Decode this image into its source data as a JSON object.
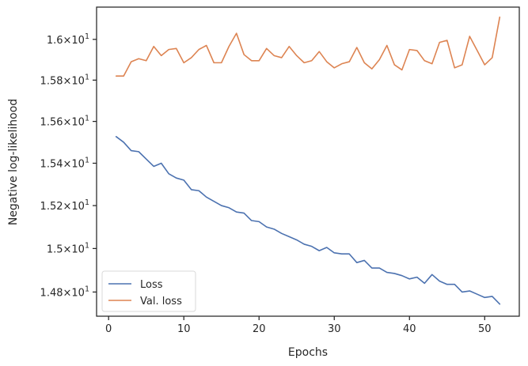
{
  "chart_data": {
    "type": "line",
    "xlabel": "Epochs",
    "ylabel": "Negative log-likelihood",
    "yscale": "log",
    "xlim": [
      -1.6,
      54.6
    ],
    "ylim": [
      14.69,
      16.16
    ],
    "grid": false,
    "legend_position": "lower-left",
    "x_ticks": [
      0,
      10,
      20,
      30,
      40,
      50
    ],
    "x_tick_labels": [
      "0",
      "10",
      "20",
      "30",
      "40",
      "50"
    ],
    "y_ticks": [
      {
        "value": 14.8,
        "mantissa": "1.48",
        "base": "10",
        "exp": "1"
      },
      {
        "value": 15.0,
        "mantissa": "1.5",
        "base": "10",
        "exp": "1"
      },
      {
        "value": 15.2,
        "mantissa": "1.52",
        "base": "10",
        "exp": "1"
      },
      {
        "value": 15.4,
        "mantissa": "1.54",
        "base": "10",
        "exp": "1"
      },
      {
        "value": 15.6,
        "mantissa": "1.56",
        "base": "10",
        "exp": "1"
      },
      {
        "value": 15.8,
        "mantissa": "1.58",
        "base": "10",
        "exp": "1"
      },
      {
        "value": 16.0,
        "mantissa": "1.6",
        "base": "10",
        "exp": "1"
      }
    ],
    "x": [
      1,
      2,
      3,
      4,
      5,
      6,
      7,
      8,
      9,
      10,
      11,
      12,
      13,
      14,
      15,
      16,
      17,
      18,
      19,
      20,
      21,
      22,
      23,
      24,
      25,
      26,
      27,
      28,
      29,
      30,
      31,
      32,
      33,
      34,
      35,
      36,
      37,
      38,
      39,
      40,
      41,
      42,
      43,
      44,
      45,
      46,
      47,
      48,
      49,
      50,
      51,
      52
    ],
    "series": [
      {
        "name": "Loss",
        "color": "#4c72b0",
        "values": [
          15.527,
          15.5,
          15.46,
          15.455,
          15.42,
          15.385,
          15.4,
          15.35,
          15.33,
          15.32,
          15.275,
          15.27,
          15.24,
          15.22,
          15.2,
          15.19,
          15.17,
          15.165,
          15.13,
          15.125,
          15.1,
          15.09,
          15.07,
          15.055,
          15.04,
          15.02,
          15.01,
          14.99,
          15.005,
          14.98,
          14.975,
          14.975,
          14.935,
          14.945,
          14.91,
          14.91,
          14.89,
          14.885,
          14.875,
          14.86,
          14.868,
          14.84,
          14.88,
          14.85,
          14.835,
          14.835,
          14.8,
          14.805,
          14.79,
          14.775,
          14.78,
          14.745
        ]
      },
      {
        "name": "Val. loss",
        "color": "#dd8452",
        "values": [
          15.82,
          15.82,
          15.89,
          15.905,
          15.895,
          15.965,
          15.92,
          15.95,
          15.955,
          15.885,
          15.91,
          15.95,
          15.97,
          15.885,
          15.885,
          15.965,
          16.03,
          15.925,
          15.895,
          15.895,
          15.955,
          15.92,
          15.91,
          15.965,
          15.92,
          15.885,
          15.895,
          15.94,
          15.89,
          15.86,
          15.88,
          15.89,
          15.96,
          15.885,
          15.855,
          15.9,
          15.97,
          15.875,
          15.85,
          15.95,
          15.945,
          15.895,
          15.88,
          15.985,
          15.995,
          15.86,
          15.875,
          16.015,
          15.945,
          15.875,
          15.91,
          16.11
        ]
      }
    ]
  }
}
